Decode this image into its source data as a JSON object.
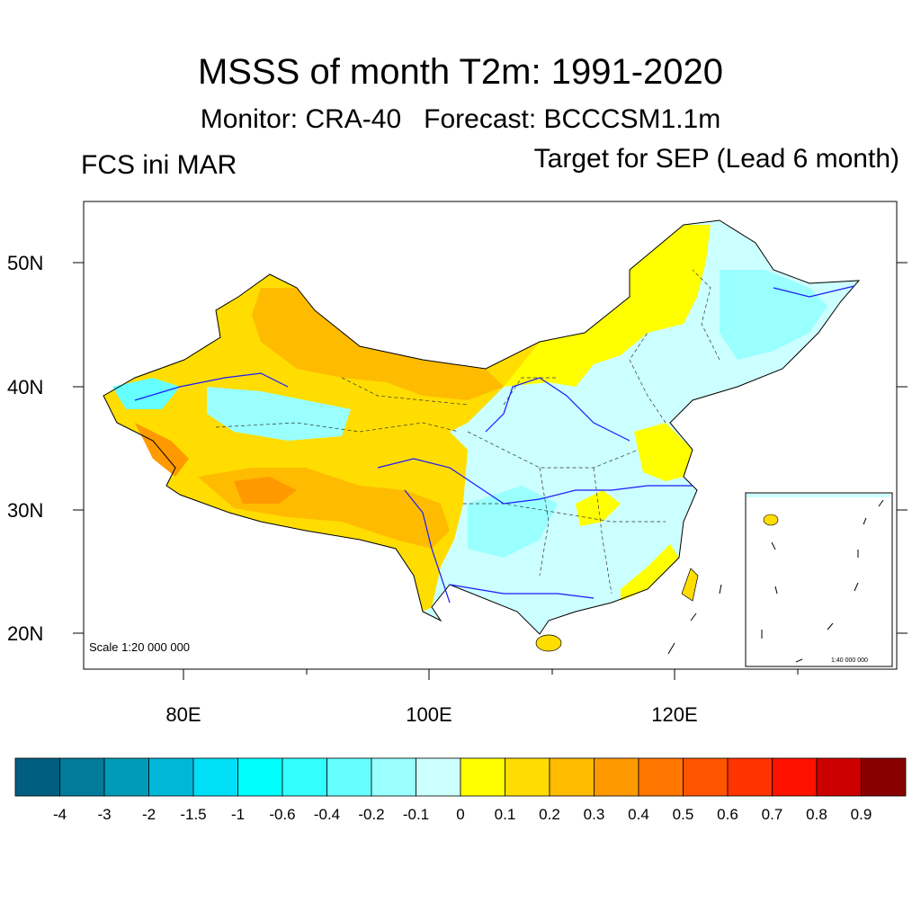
{
  "title": "MSSS of month T2m: 1991-2020",
  "subtitle": "Monitor: CRA-40   Forecast: BCCCSM1.1m",
  "init_label": "FCS ini MAR",
  "target_label": "Target for SEP (Lead 6 month)",
  "lat_labels": [
    "50N",
    "40N",
    "30N",
    "20N"
  ],
  "lon_labels": [
    "80E",
    "100E",
    "120E"
  ],
  "scale_main": "Scale 1:20 000 000",
  "scale_inset": "1:40 000 000",
  "colorbar": {
    "colors": [
      "#005f7f",
      "#007b99",
      "#009bb8",
      "#00b7d8",
      "#00dff6",
      "#00ffff",
      "#33ffff",
      "#66ffff",
      "#99ffff",
      "#ccffff",
      "#ffff00",
      "#ffdd00",
      "#ffbb00",
      "#ff9900",
      "#ff7700",
      "#ff5500",
      "#ff3300",
      "#ff1100",
      "#cc0000",
      "#880000"
    ],
    "labels": [
      "-4",
      "-3",
      "-2",
      "-1.5",
      "-1",
      "-0.6",
      "-0.4",
      "-0.2",
      "-0.1",
      "0",
      "0.1",
      "0.2",
      "0.3",
      "0.4",
      "0.5",
      "0.6",
      "0.7",
      "0.8",
      "0.9"
    ]
  },
  "palette": {
    "cyan": "#66ffff",
    "light_cyan": "#ccffff",
    "yellow": "#ffff00",
    "gold": "#ffdd00",
    "amber": "#ffbb00",
    "orange": "#ff9900",
    "dark_orange": "#ff7700",
    "river": "#1a1aff"
  }
}
